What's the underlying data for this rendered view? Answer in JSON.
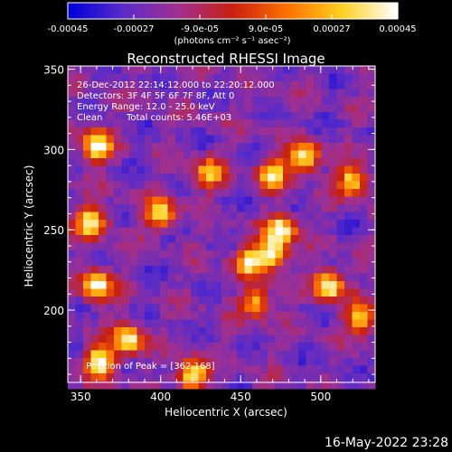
{
  "chart_data": {
    "type": "heatmap",
    "title": "Reconstructed RHESSI Image",
    "xlabel": "Heliocentric X (arcsec)",
    "ylabel": "Heliocentric Y (arcsec)",
    "xlim": [
      342,
      534
    ],
    "ylim": [
      155,
      352
    ],
    "x_ticks": [
      350,
      400,
      450,
      500
    ],
    "y_ticks": [
      200,
      250,
      300,
      350
    ],
    "grid": false,
    "colorbar": {
      "ticks": [
        "-0.00045",
        "-0.00027",
        "-9.0e-05",
        "9.0e-05",
        "0.00027",
        "0.00045"
      ],
      "range": [
        -0.00045,
        0.00045
      ],
      "unit_label": "(photons cm⁻² s⁻¹ asec⁻²)",
      "colormap": [
        "#0000d8",
        "#5a2cc8",
        "#a03090",
        "#c82010",
        "#ff7000",
        "#ffd020",
        "#ffffff"
      ]
    },
    "annotations": {
      "time_range": "26-Dec-2012 22:14:12.000 to 22:20:12.000",
      "detectors": "Detectors: 3F 4F 5F 6F 7F 8F, Att 0",
      "energy_range": "Energy Range: 12.0 - 25.0 keV",
      "clean_label": "Clean",
      "total_counts": "Total counts: 5.46E+03",
      "peak_position": "Position of Peak = [362,168]"
    },
    "bright_sources": [
      {
        "x": 360,
        "y": 302,
        "intensity": 0.00045
      },
      {
        "x": 357,
        "y": 255,
        "intensity": 0.0004
      },
      {
        "x": 360,
        "y": 215,
        "intensity": 0.00043
      },
      {
        "x": 380,
        "y": 182,
        "intensity": 0.00038
      },
      {
        "x": 362,
        "y": 168,
        "intensity": 0.00045
      },
      {
        "x": 420,
        "y": 160,
        "intensity": 0.00042
      },
      {
        "x": 455,
        "y": 230,
        "intensity": 0.0003
      },
      {
        "x": 470,
        "y": 235,
        "intensity": 0.0004
      },
      {
        "x": 475,
        "y": 250,
        "intensity": 0.00043
      },
      {
        "x": 470,
        "y": 285,
        "intensity": 0.0003
      },
      {
        "x": 490,
        "y": 295,
        "intensity": 0.00038
      },
      {
        "x": 520,
        "y": 280,
        "intensity": 0.00035
      },
      {
        "x": 505,
        "y": 215,
        "intensity": 0.00044
      },
      {
        "x": 525,
        "y": 195,
        "intensity": 0.0003
      },
      {
        "x": 460,
        "y": 205,
        "intensity": 0.00025
      },
      {
        "x": 400,
        "y": 260,
        "intensity": 0.0003
      },
      {
        "x": 430,
        "y": 285,
        "intensity": 0.00025
      }
    ]
  },
  "footer": {
    "timestamp": "16-May-2022 23:28"
  }
}
